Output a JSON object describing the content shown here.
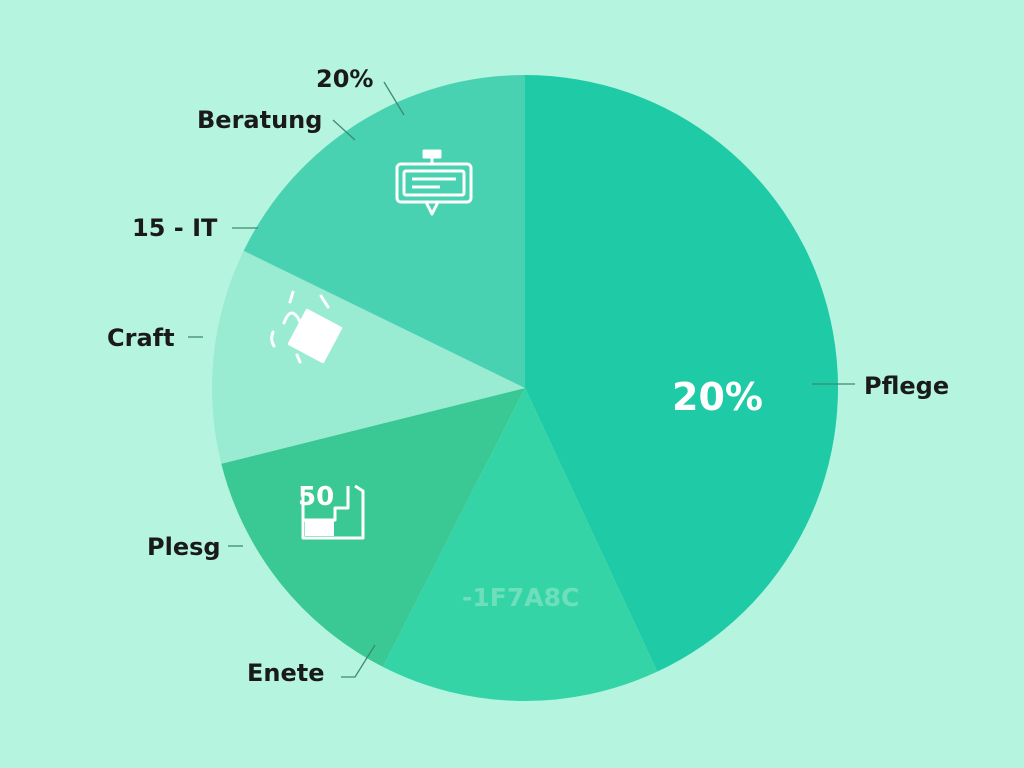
{
  "chart_data": {
    "type": "pie",
    "slices": [
      {
        "label": "Pflege",
        "start_deg": 0,
        "end_deg": 155,
        "color": "#1ecba6",
        "icon": ""
      },
      {
        "label": "Enete",
        "start_deg": 155,
        "end_deg": 207,
        "color": "#35d4a7",
        "icon": ""
      },
      {
        "label": "Plesg",
        "start_deg": 207,
        "end_deg": 256,
        "color": "#3ac994",
        "icon": "box-icon"
      },
      {
        "label": "Craft",
        "start_deg": 256,
        "end_deg": 296,
        "color": "#99ebd1",
        "icon": "hand-card-icon"
      },
      {
        "label": "15 - IT",
        "start_deg": 296,
        "end_deg": 360,
        "color": "#48d2b2",
        "icon": "easel-icon"
      }
    ],
    "labels": {
      "top_percent": "20%",
      "beratung": "Beratung",
      "it": "15 - IT",
      "craft": "Craft",
      "plesg": "Plesg",
      "enete": "Enete",
      "pflege": "Pflege",
      "center_percent": "20%",
      "code": "-1F7A8C",
      "icon_number": "50"
    },
    "colors": {
      "background": "#b5f5e0",
      "pflege": "#1ecba6",
      "enete": "#35d4a7",
      "plesg": "#3ac994",
      "craft": "#99ebd1",
      "it": "#48d2b2"
    }
  }
}
